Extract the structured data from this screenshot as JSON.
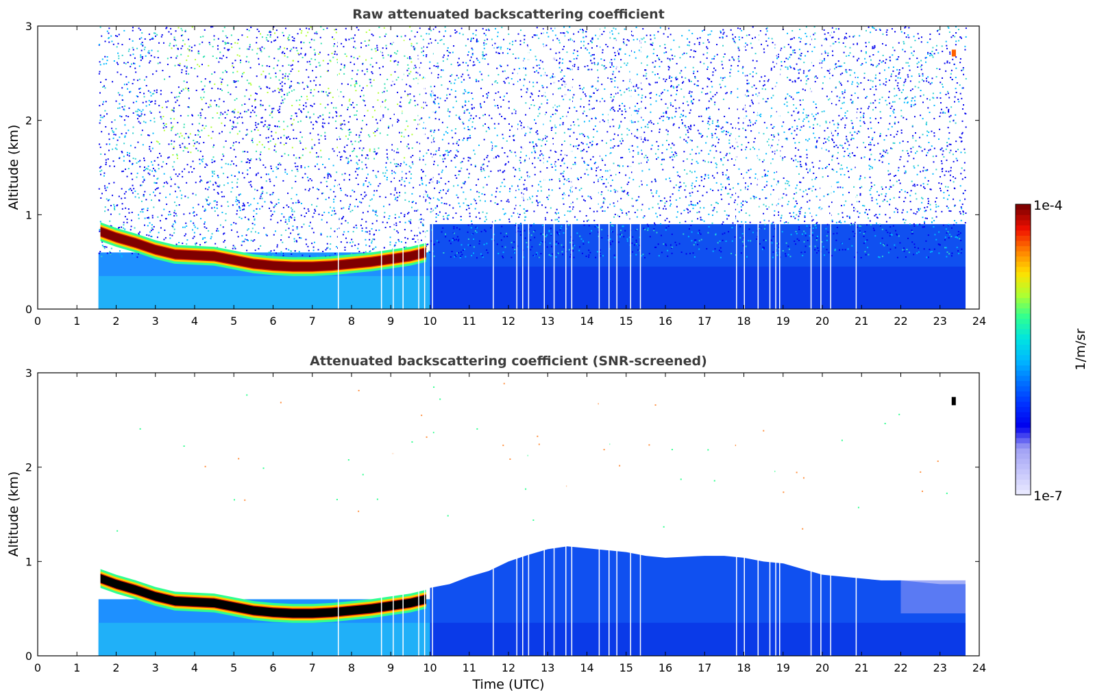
{
  "chart_data": [
    {
      "type": "heatmap",
      "title": "Raw attenuated backscattering coefficient",
      "xlabel": "",
      "ylabel": "Altitude (km)",
      "xlim": [
        0,
        24
      ],
      "ylim": [
        0,
        3
      ],
      "xticks": [
        "0",
        "1",
        "2",
        "3",
        "4",
        "5",
        "6",
        "7",
        "8",
        "9",
        "10",
        "11",
        "12",
        "13",
        "14",
        "15",
        "16",
        "17",
        "18",
        "19",
        "20",
        "21",
        "22",
        "23",
        "24"
      ],
      "yticks": [
        "0",
        "1",
        "2",
        "3"
      ],
      "data_time_range": [
        1.55,
        23.65
      ],
      "cloud_layer": {
        "time": [
          1.6,
          2.0,
          2.5,
          3.0,
          3.5,
          4.0,
          4.5,
          5.0,
          5.5,
          6.0,
          6.5,
          7.0,
          7.5,
          8.0,
          8.5,
          9.0,
          9.5,
          9.9
        ],
        "altitude_km": [
          0.82,
          0.76,
          0.7,
          0.63,
          0.58,
          0.57,
          0.56,
          0.52,
          0.48,
          0.46,
          0.45,
          0.45,
          0.46,
          0.48,
          0.5,
          0.53,
          0.56,
          0.6
        ]
      },
      "data_gaps_time": [
        7.65,
        8.75,
        9.05,
        9.3,
        9.7,
        9.85,
        10.05,
        11.6,
        12.2,
        12.35,
        12.5,
        12.9,
        13.15,
        13.45,
        13.6,
        14.3,
        14.55,
        14.75,
        15.1,
        15.35,
        17.8,
        18.0,
        18.35,
        18.65,
        18.8,
        18.9,
        19.7,
        19.95,
        20.2,
        20.85
      ],
      "noise_level": "high",
      "pbl_top_km_after_10h": 0.9
    },
    {
      "type": "heatmap",
      "title": "Attenuated backscattering coefficient (SNR-screened)",
      "xlabel": "Time (UTC)",
      "ylabel": "Altitude (km)",
      "xlim": [
        0,
        24
      ],
      "ylim": [
        0,
        3
      ],
      "xticks": [
        "0",
        "1",
        "2",
        "3",
        "4",
        "5",
        "6",
        "7",
        "8",
        "9",
        "10",
        "11",
        "12",
        "13",
        "14",
        "15",
        "16",
        "17",
        "18",
        "19",
        "20",
        "21",
        "22",
        "23",
        "24"
      ],
      "yticks": [
        "0",
        "1",
        "2",
        "3"
      ],
      "data_time_range": [
        1.55,
        23.65
      ],
      "cloud_layer": {
        "time": [
          1.6,
          2.0,
          2.5,
          3.0,
          3.5,
          4.0,
          4.5,
          5.0,
          5.5,
          6.0,
          6.5,
          7.0,
          7.5,
          8.0,
          8.5,
          9.0,
          9.5,
          9.9
        ],
        "altitude_km": [
          0.82,
          0.76,
          0.7,
          0.63,
          0.58,
          0.57,
          0.56,
          0.52,
          0.48,
          0.46,
          0.45,
          0.45,
          0.46,
          0.48,
          0.5,
          0.53,
          0.56,
          0.6
        ]
      },
      "pbl_top": {
        "time": [
          10.0,
          10.5,
          11.0,
          11.5,
          12.0,
          12.5,
          13.0,
          13.5,
          14.0,
          14.5,
          15.0,
          15.5,
          16.0,
          16.5,
          17.0,
          17.5,
          18.0,
          18.5,
          19.0,
          19.5,
          20.0,
          20.5,
          21.0,
          21.5,
          22.0,
          22.5,
          23.0,
          23.65
        ],
        "altitude_km": [
          0.72,
          0.76,
          0.84,
          0.9,
          1.0,
          1.07,
          1.13,
          1.16,
          1.14,
          1.12,
          1.1,
          1.06,
          1.04,
          1.05,
          1.06,
          1.06,
          1.04,
          1.0,
          0.98,
          0.92,
          0.86,
          0.84,
          0.82,
          0.8,
          0.8,
          0.78,
          0.76,
          0.76
        ]
      },
      "data_gaps_time": [
        7.65,
        8.75,
        9.05,
        9.3,
        9.7,
        9.85,
        10.05,
        11.6,
        12.2,
        12.35,
        12.5,
        12.9,
        13.15,
        13.45,
        13.6,
        14.3,
        14.55,
        14.75,
        15.1,
        15.35,
        17.8,
        18.0,
        18.35,
        18.65,
        18.8,
        18.9,
        19.7,
        19.95,
        20.2,
        20.85
      ],
      "small_feature": {
        "time": 23.35,
        "altitude_km": 2.7
      }
    }
  ],
  "colorbar": {
    "label": "1/m/sr",
    "max_label": "1e-4",
    "min_label": "1e-7",
    "scale": "log",
    "range": [
      1e-07,
      0.0001
    ],
    "colors": [
      "#e8e8ff",
      "#c4c4fb",
      "#a0a0f4",
      "#0000ee",
      "#0030ff",
      "#0070ff",
      "#00b8ff",
      "#00e4e0",
      "#30ff90",
      "#b0ff30",
      "#ffe000",
      "#ff8000",
      "#f01000",
      "#800000"
    ]
  }
}
